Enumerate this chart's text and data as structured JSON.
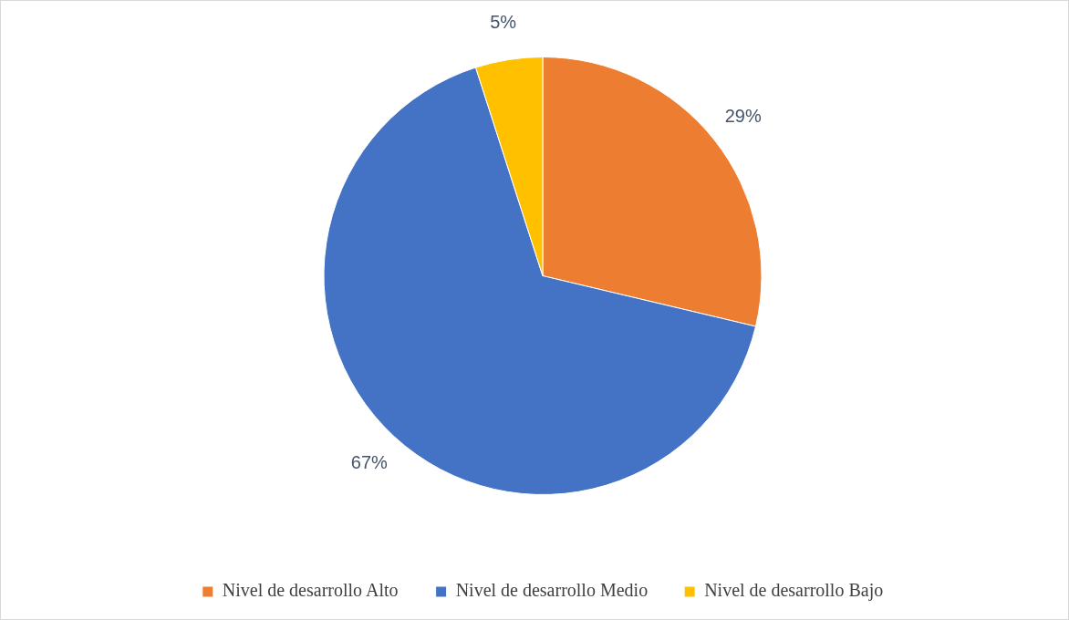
{
  "chart_data": {
    "type": "pie",
    "categories": [
      "Nivel de desarrollo Alto",
      "Nivel de desarrollo Medio",
      "Nivel de desarrollo Bajo"
    ],
    "values": [
      29,
      67,
      5
    ],
    "colors": [
      "#ed7d31",
      "#4472c4",
      "#ffc000"
    ],
    "value_labels": [
      "29%",
      "67%",
      "5%"
    ],
    "legend": "bottom"
  }
}
